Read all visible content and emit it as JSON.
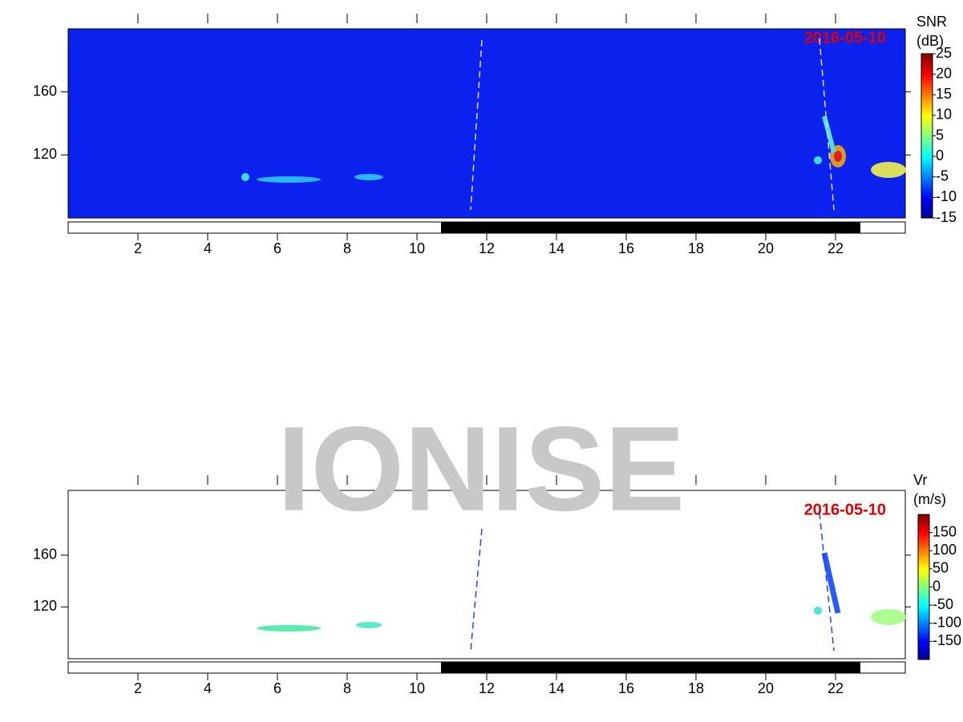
{
  "watermark": "IONISE",
  "chart_data": [
    {
      "type": "heatmap",
      "annotation": "2016-05-10",
      "colorbar_label": [
        "SNR",
        "(dB)"
      ],
      "xlim": [
        0,
        24
      ],
      "xticks": [
        2,
        4,
        6,
        8,
        10,
        12,
        14,
        16,
        18,
        20,
        22
      ],
      "ylim": [
        80,
        200
      ],
      "yticks": [
        120,
        160
      ],
      "clim": [
        -15,
        25
      ],
      "cticks": [
        -15,
        -10,
        -5,
        0,
        5,
        10,
        15,
        20,
        25
      ],
      "background": "#0b22ee"
    },
    {
      "type": "heatmap",
      "annotation": "2016-05-10",
      "colorbar_label": [
        "Vr",
        "(m/s)"
      ],
      "xlim": [
        0,
        24
      ],
      "xticks": [
        2,
        4,
        6,
        8,
        10,
        12,
        14,
        16,
        18,
        20,
        22
      ],
      "ylim": [
        80,
        210
      ],
      "yticks": [
        120,
        160
      ],
      "clim": [
        -200,
        200
      ],
      "cticks": [
        -150,
        -100,
        -50,
        0,
        50,
        100,
        150
      ],
      "background": "#ffffff"
    }
  ]
}
